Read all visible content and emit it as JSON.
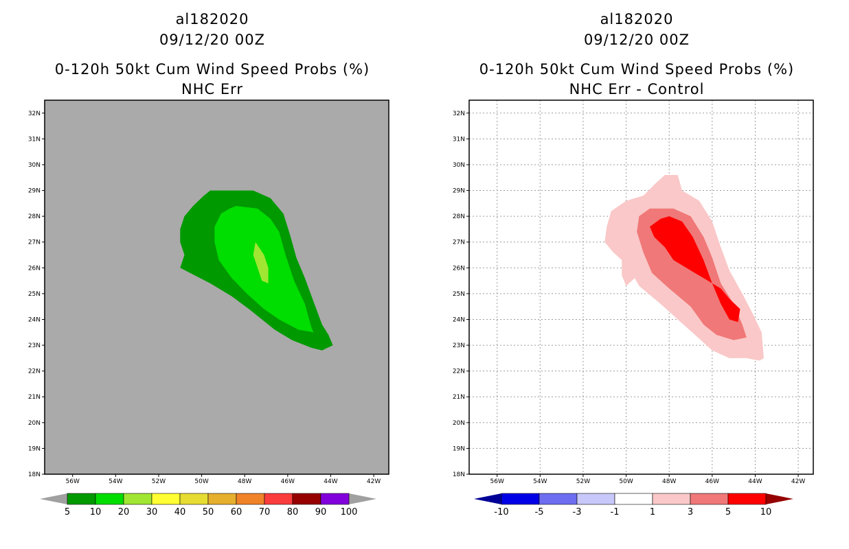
{
  "left_panel": {
    "title_lines": [
      "al182020",
      "09/12/20 00Z",
      "0-120h 50kt Cum Wind Speed Probs (%)",
      "NHC Err"
    ],
    "background_color": "#aaaaaa",
    "colorbar": {
      "labels": [
        "5",
        "10",
        "20",
        "30",
        "40",
        "50",
        "60",
        "70",
        "80",
        "90",
        "100"
      ],
      "colors": [
        "#009900",
        "#00dd00",
        "#a0e632",
        "#ffff33",
        "#e6dc32",
        "#e6af2d",
        "#f08228",
        "#fa3c3c",
        "#960000",
        "#8200dc"
      ],
      "end_colors": [
        "#a0a0a0",
        "#a0a0a0"
      ]
    },
    "contour_colors": [
      "#009900",
      "#00dd00",
      "#a0e632"
    ]
  },
  "right_panel": {
    "title_lines": [
      "al182020",
      "09/12/20 00Z",
      "0-120h 50kt Cum Wind Speed Probs (%)",
      "NHC Err - Control"
    ],
    "background_color": "#ffffff",
    "colorbar": {
      "labels": [
        "-10",
        "-5",
        "-3",
        "-1",
        "1",
        "3",
        "5",
        "10"
      ],
      "colors": [
        "#0000e6",
        "#6e6ef0",
        "#c8c8fa",
        "#ffffff",
        "#fac8c8",
        "#f07878",
        "#ff0000"
      ],
      "end_colors": [
        "#000096",
        "#960000"
      ]
    },
    "contour_colors": [
      "#fac8c8",
      "#f07878",
      "#ff0000"
    ]
  },
  "axes": {
    "lat_labels": [
      "32N",
      "31N",
      "30N",
      "29N",
      "28N",
      "27N",
      "26N",
      "25N",
      "24N",
      "23N",
      "22N",
      "21N",
      "20N",
      "19N",
      "18N"
    ],
    "lon_labels": [
      "56W",
      "54W",
      "52W",
      "50W",
      "48W",
      "46W",
      "44W",
      "42W"
    ],
    "lat_range": [
      18,
      32.5
    ],
    "lon_range": [
      -57.3,
      -41.3
    ]
  }
}
